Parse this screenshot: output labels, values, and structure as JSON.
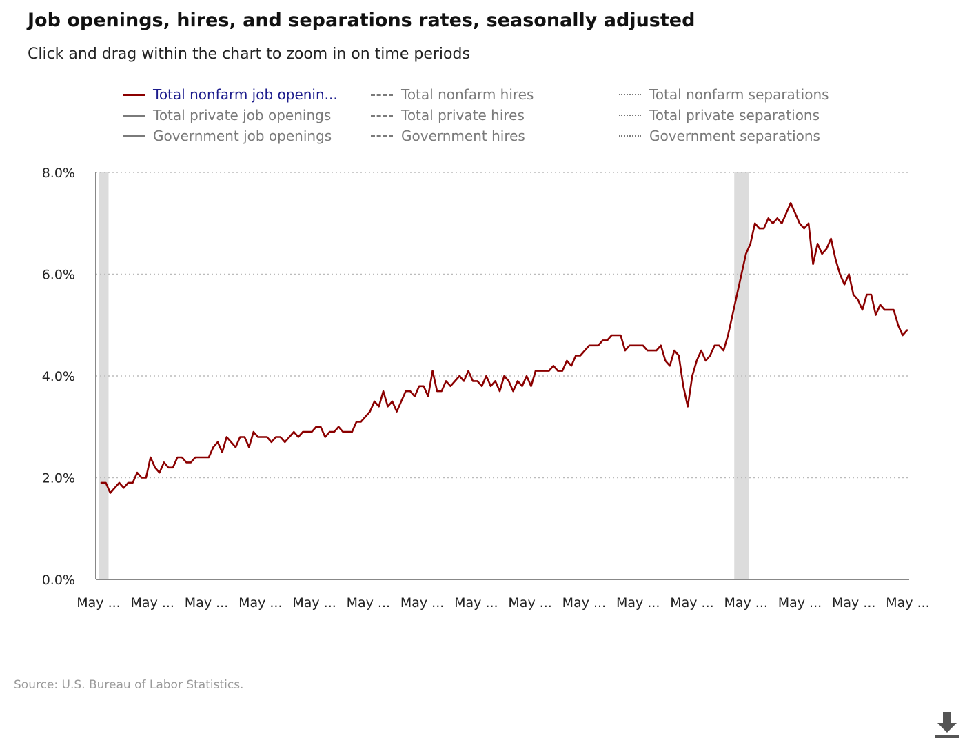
{
  "header": {
    "title": "Job openings, hires, and separations rates, seasonally adjusted",
    "subtitle": "Click and drag within the chart to zoom in on time periods"
  },
  "legend": [
    {
      "label": "Total nonfarm job openin...",
      "style": "solid",
      "active": true
    },
    {
      "label": "Total nonfarm hires",
      "style": "dashed",
      "active": false
    },
    {
      "label": "Total nonfarm separations",
      "style": "dotted",
      "active": false
    },
    {
      "label": "Total private job openings",
      "style": "solid",
      "active": false
    },
    {
      "label": "Total private hires",
      "style": "dashed",
      "active": false
    },
    {
      "label": "Total private separations",
      "style": "dotted",
      "active": false
    },
    {
      "label": "Government job openings",
      "style": "solid",
      "active": false
    },
    {
      "label": "Government hires",
      "style": "dashed",
      "active": false
    },
    {
      "label": "Government separations",
      "style": "dotted",
      "active": false
    }
  ],
  "source": "Source: U.S. Bureau of Labor Statistics.",
  "colors": {
    "series": "#8b0000",
    "grid": "#bbbbbb",
    "recession": "#dcdcdc",
    "axis": "#888888"
  },
  "chart_data": {
    "type": "line",
    "y_ticks": [
      "0.0%",
      "2.0%",
      "4.0%",
      "6.0%",
      "8.0%"
    ],
    "ylim": [
      0,
      8
    ],
    "x_ticks": [
      "May ...",
      "May ...",
      "May ...",
      "May ...",
      "May ...",
      "May ...",
      "May ...",
      "May ...",
      "May ...",
      "May ...",
      "May ...",
      "May ...",
      "May ...",
      "May ...",
      "May ...",
      "May ..."
    ],
    "grid": true,
    "recession_bands": [
      [
        0,
        1
      ],
      [
        142,
        144
      ]
    ],
    "series": [
      {
        "name": "Total nonfarm job openin...",
        "values": [
          1.9,
          1.9,
          1.7,
          1.8,
          1.9,
          1.8,
          1.9,
          1.9,
          2.1,
          2.0,
          2.0,
          2.4,
          2.2,
          2.1,
          2.3,
          2.2,
          2.2,
          2.4,
          2.4,
          2.3,
          2.3,
          2.4,
          2.4,
          2.4,
          2.4,
          2.6,
          2.7,
          2.5,
          2.8,
          2.7,
          2.6,
          2.8,
          2.8,
          2.6,
          2.9,
          2.8,
          2.8,
          2.8,
          2.7,
          2.8,
          2.8,
          2.7,
          2.8,
          2.9,
          2.8,
          2.9,
          2.9,
          2.9,
          3.0,
          3.0,
          2.8,
          2.9,
          2.9,
          3.0,
          2.9,
          2.9,
          2.9,
          3.1,
          3.1,
          3.2,
          3.3,
          3.5,
          3.4,
          3.7,
          3.4,
          3.5,
          3.3,
          3.5,
          3.7,
          3.7,
          3.6,
          3.8,
          3.8,
          3.6,
          4.1,
          3.7,
          3.7,
          3.9,
          3.8,
          3.9,
          4.0,
          3.9,
          4.1,
          3.9,
          3.9,
          3.8,
          4.0,
          3.8,
          3.9,
          3.7,
          4.0,
          3.9,
          3.7,
          3.9,
          3.8,
          4.0,
          3.8,
          4.1,
          4.1,
          4.1,
          4.1,
          4.2,
          4.1,
          4.1,
          4.3,
          4.2,
          4.4,
          4.4,
          4.5,
          4.6,
          4.6,
          4.6,
          4.7,
          4.7,
          4.8,
          4.8,
          4.8,
          4.5,
          4.6,
          4.6,
          4.6,
          4.6,
          4.5,
          4.5,
          4.5,
          4.6,
          4.3,
          4.2,
          4.5,
          4.4,
          3.8,
          3.4,
          4.0,
          4.3,
          4.5,
          4.3,
          4.4,
          4.6,
          4.6,
          4.5,
          4.8,
          5.2,
          5.6,
          6.0,
          6.4,
          6.6,
          7.0,
          6.9,
          6.9,
          7.1,
          7.0,
          7.1,
          7.0,
          7.2,
          7.4,
          7.2,
          7.0,
          6.9,
          7.0,
          6.2,
          6.6,
          6.4,
          6.5,
          6.7,
          6.3,
          6.0,
          5.8,
          6.0,
          5.6,
          5.5,
          5.3,
          5.6,
          5.6,
          5.2,
          5.4,
          5.3,
          5.3,
          5.3,
          5.0,
          4.8,
          4.9
        ]
      }
    ]
  }
}
